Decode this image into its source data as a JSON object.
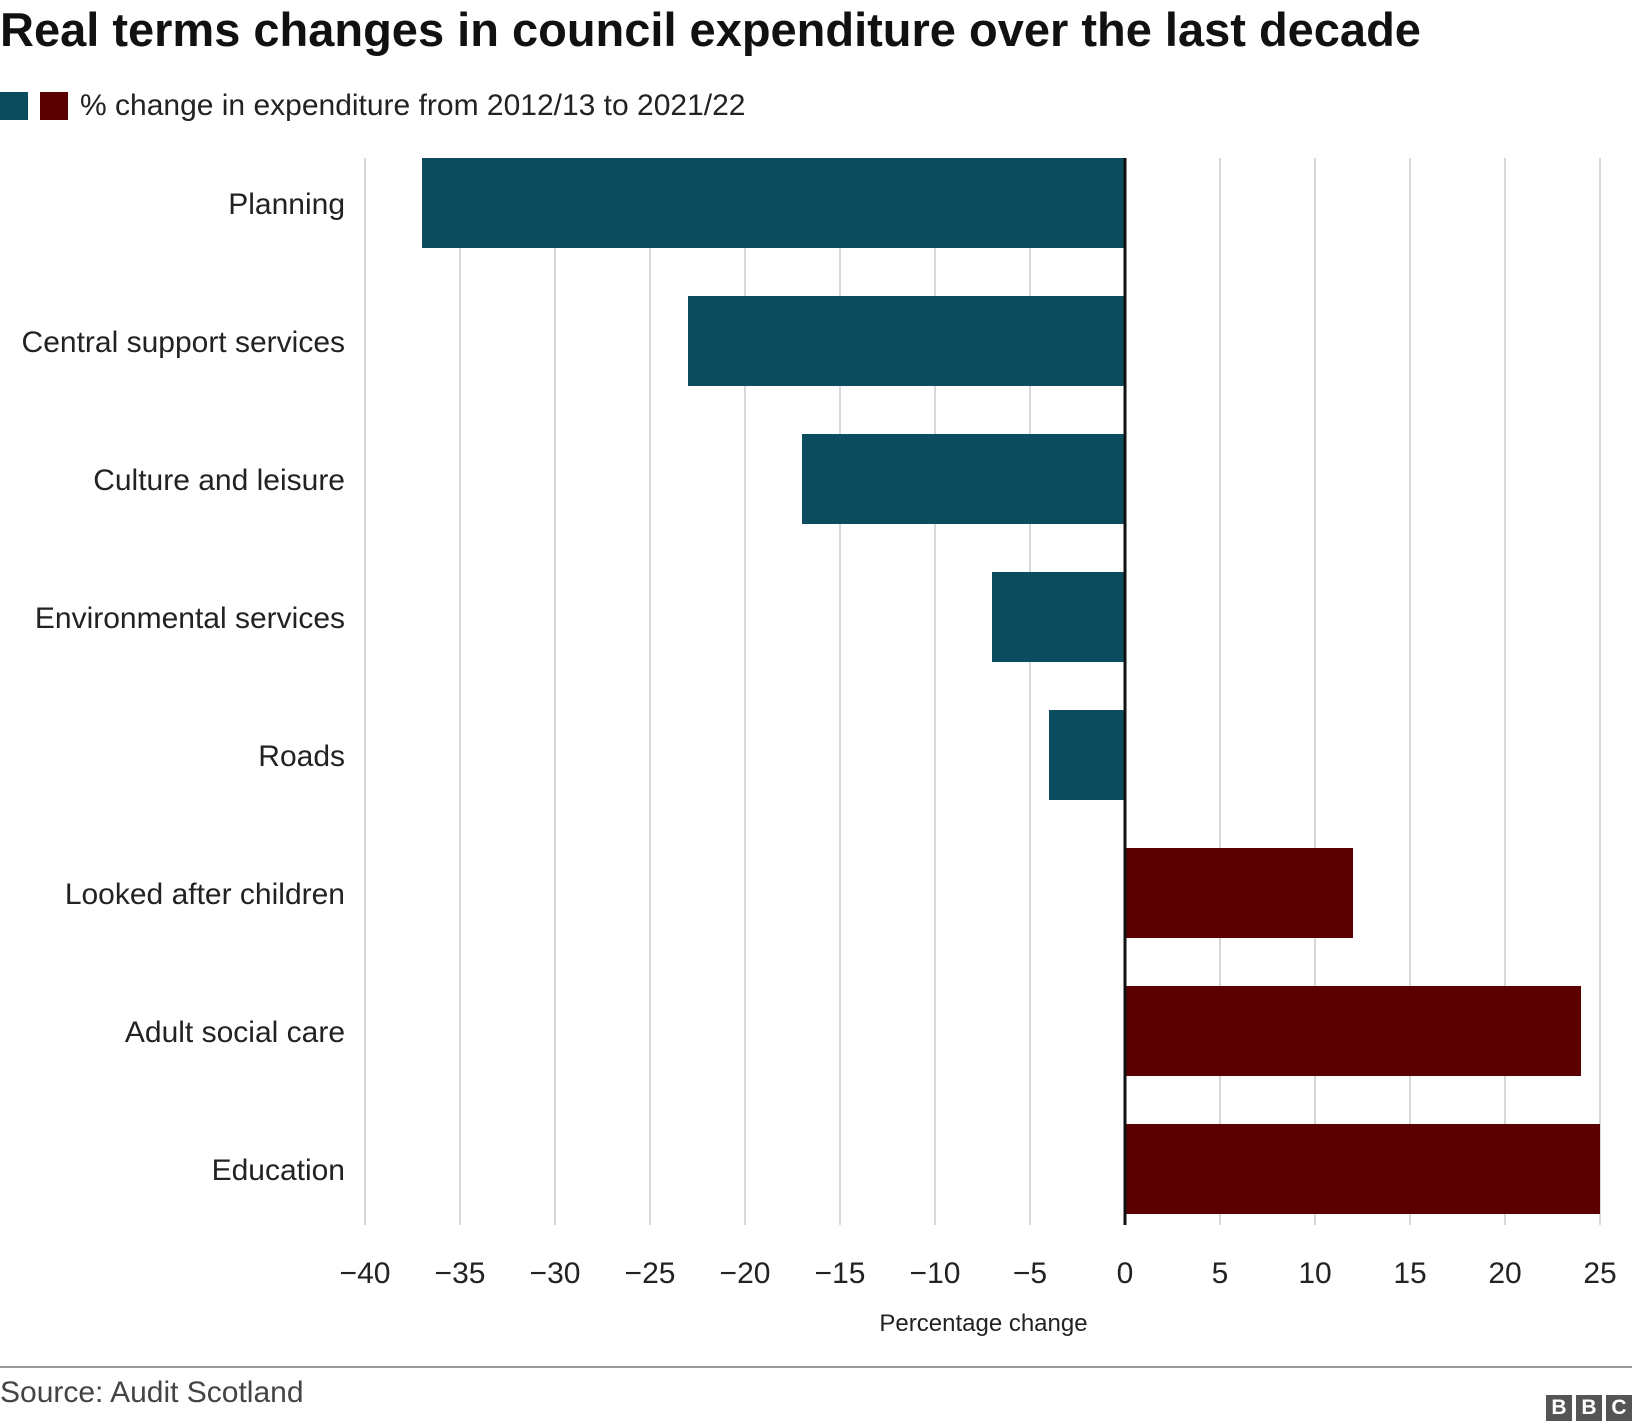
{
  "title": "Real terms changes in council expenditure over the last decade",
  "legend": {
    "label": "% change in expenditure from 2012/13 to 2021/22"
  },
  "colors": {
    "negative": "#0b4c5f",
    "positive": "#5b0000",
    "grid": "#cccccc",
    "axis": "#111111"
  },
  "chart_data": {
    "type": "bar",
    "orientation": "horizontal",
    "categories": [
      "Planning",
      "Central support services",
      "Culture and leisure",
      "Environmental services",
      "Roads",
      "Looked after children",
      "Adult social care",
      "Education"
    ],
    "values": [
      -37,
      -23,
      -17,
      -7,
      -4,
      12,
      24,
      25
    ],
    "xlim": [
      -40,
      25
    ],
    "xticks": [
      -40,
      -35,
      -30,
      -25,
      -20,
      -15,
      -10,
      -5,
      0,
      5,
      10,
      15,
      20,
      25
    ],
    "tick_labels": [
      "−40",
      "−35",
      "−30",
      "−25",
      "−20",
      "−15",
      "−10",
      "−5",
      "0",
      "5",
      "10",
      "15",
      "20",
      "25"
    ],
    "xlabel": "Percentage change",
    "ylabel": "",
    "grid": "vertical",
    "legend_position": "top-left"
  },
  "footer": {
    "source": "Source: Audit Scotland",
    "logo_letters": [
      "B",
      "B",
      "C"
    ]
  }
}
